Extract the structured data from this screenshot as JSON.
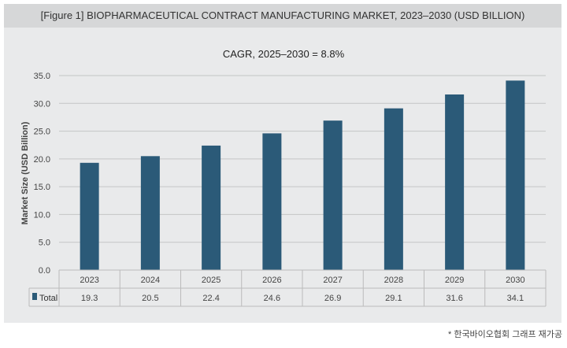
{
  "header": {
    "title": "[Figure 1] BIOPHARMACEUTICAL CONTRACT MANUFACTURING MARKET, 2023–2030 (USD BILLION)"
  },
  "footnote": "* 한국바이오협회 그래프 재가공",
  "chart_data": {
    "type": "bar",
    "title": "CAGR, 2025–2030 = 8.8%",
    "ylabel": "Market Size (USD Billion)",
    "xlabel": "",
    "categories": [
      "2023",
      "2024",
      "2025",
      "2026",
      "2027",
      "2028",
      "2029",
      "2030"
    ],
    "series": [
      {
        "name": "Total",
        "values": [
          19.3,
          20.5,
          22.4,
          24.6,
          26.9,
          29.1,
          31.6,
          34.1
        ]
      }
    ],
    "value_labels": [
      "19.3",
      "20.5",
      "22.4",
      "24.6",
      "26.9",
      "29.1",
      "31.6",
      "34.1"
    ],
    "ylim": [
      0,
      35
    ],
    "yticks": [
      "0.0",
      "5.0",
      "10.0",
      "15.0",
      "20.0",
      "25.0",
      "30.0",
      "35.0"
    ],
    "grid": true,
    "legend": "data-table",
    "bar_color": "#2b5a78"
  }
}
